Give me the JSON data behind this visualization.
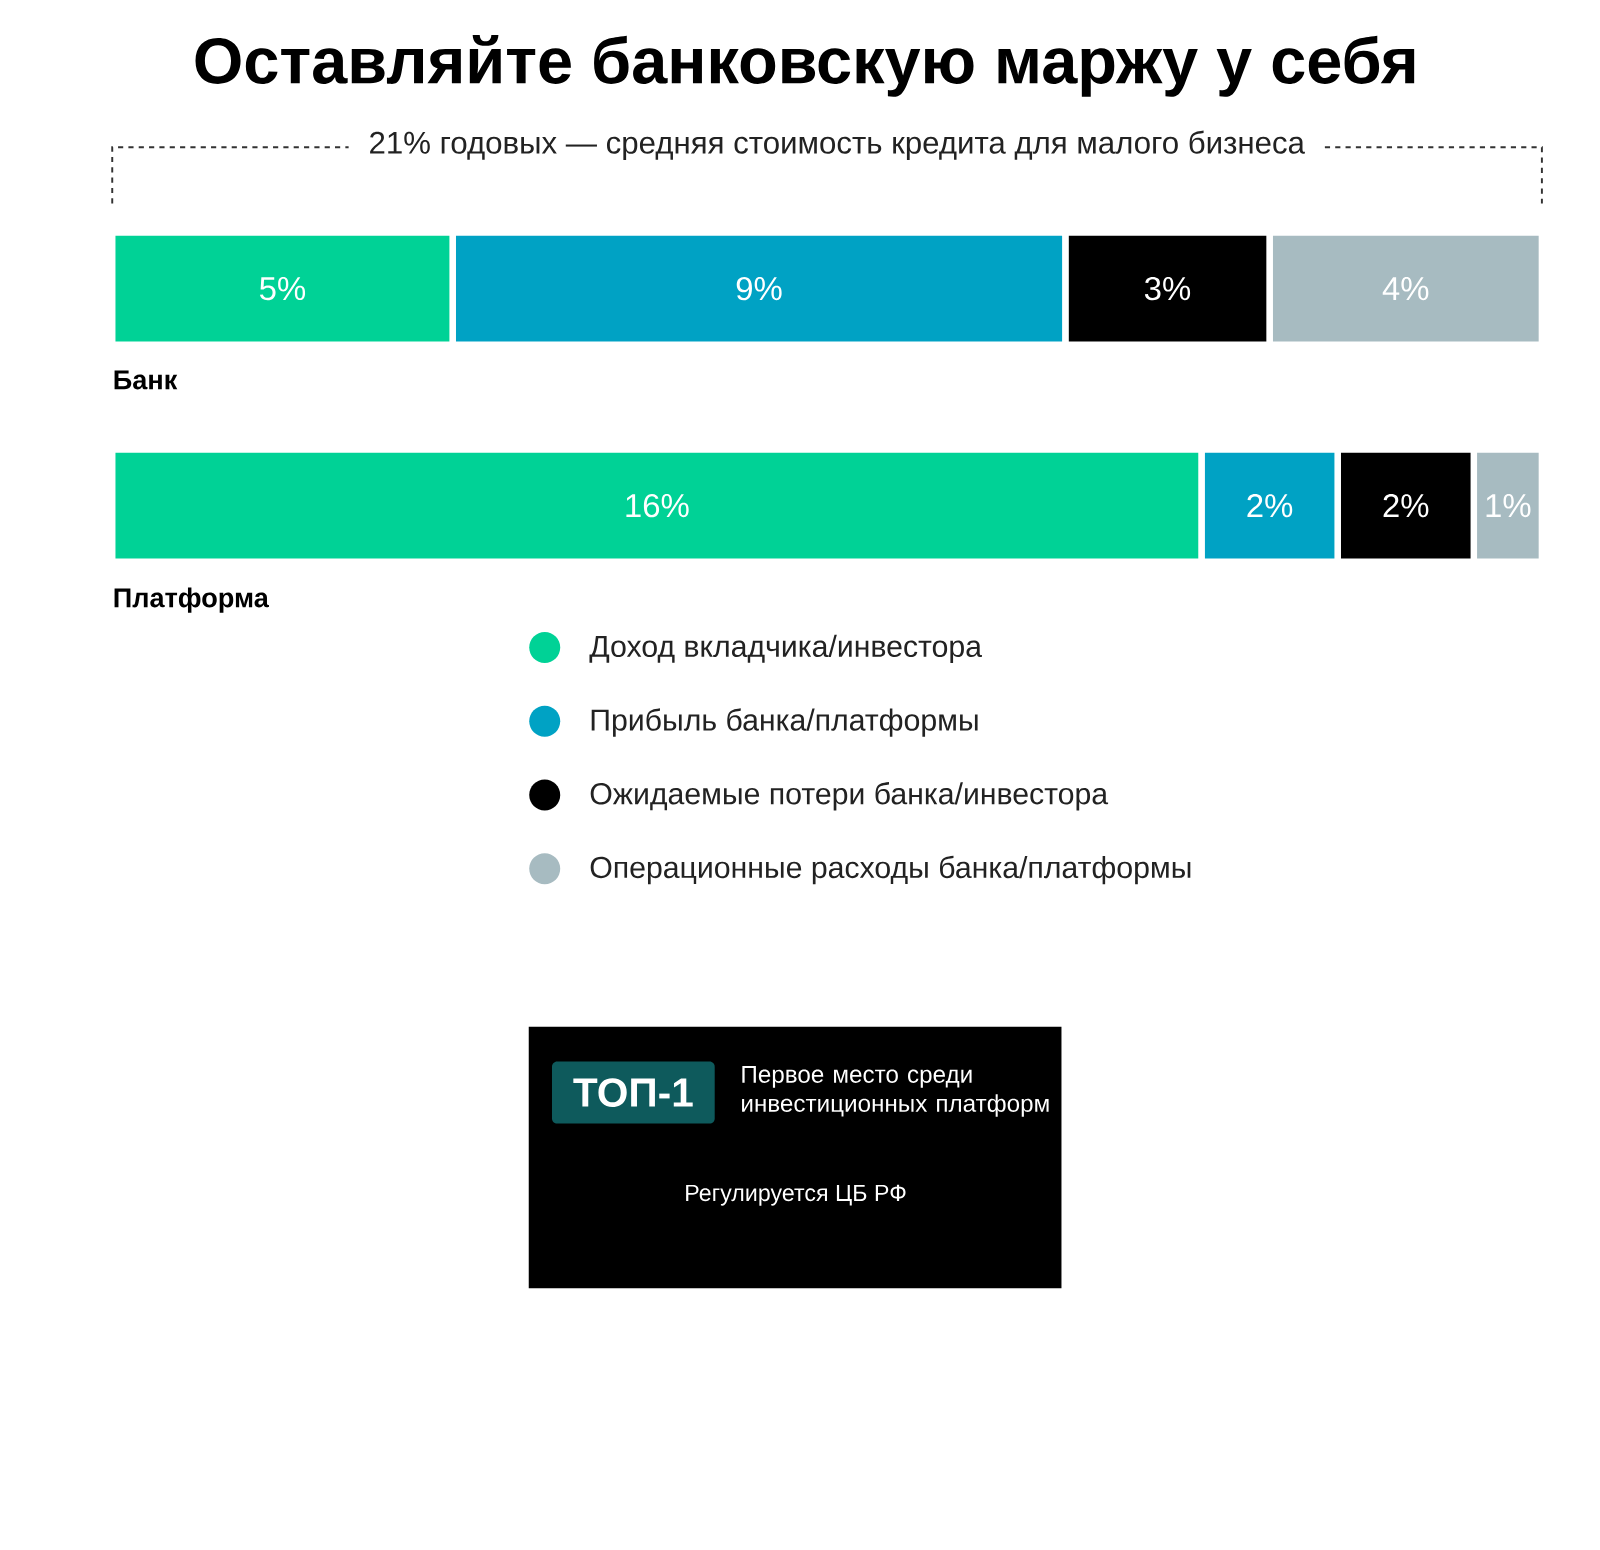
{
  "chart_data": {
    "type": "bar",
    "title": "Оставляйте банковскую маржу у себя",
    "orientation": "horizontal",
    "stacked": true,
    "categories": [
      "Банк",
      "Платформа"
    ],
    "xlim": [
      0,
      21
    ],
    "tick_labels": "y",
    "legend": "bottom",
    "series": [
      {
        "name": "Доход вкладчика/инвестора",
        "color": "#00d296",
        "values": [
          5,
          16
        ],
        "value_labels": [
          "5%",
          "16%"
        ]
      },
      {
        "name": "Прибыль банка/платформы",
        "color": "#00a2c4",
        "values": [
          9,
          2
        ],
        "value_labels": [
          "9%",
          "2%"
        ]
      },
      {
        "name": "Ожидаемые потери банка/инвестора",
        "color": "#000000",
        "values": [
          3,
          2
        ],
        "value_labels": [
          "3%",
          "2%"
        ]
      },
      {
        "name": "Операционные расходы банка/платформы",
        "color": "#a7bbc1",
        "values": [
          4,
          1
        ],
        "value_labels": [
          "4%",
          "1%"
        ]
      }
    ],
    "annotations": [
      "21% годовых — средняя стоимость кредита для малого бизнеса",
      "ТОП-1",
      "Первое место среди инвестиционных платформ",
      "Регулируется ЦБ РФ"
    ]
  }
}
